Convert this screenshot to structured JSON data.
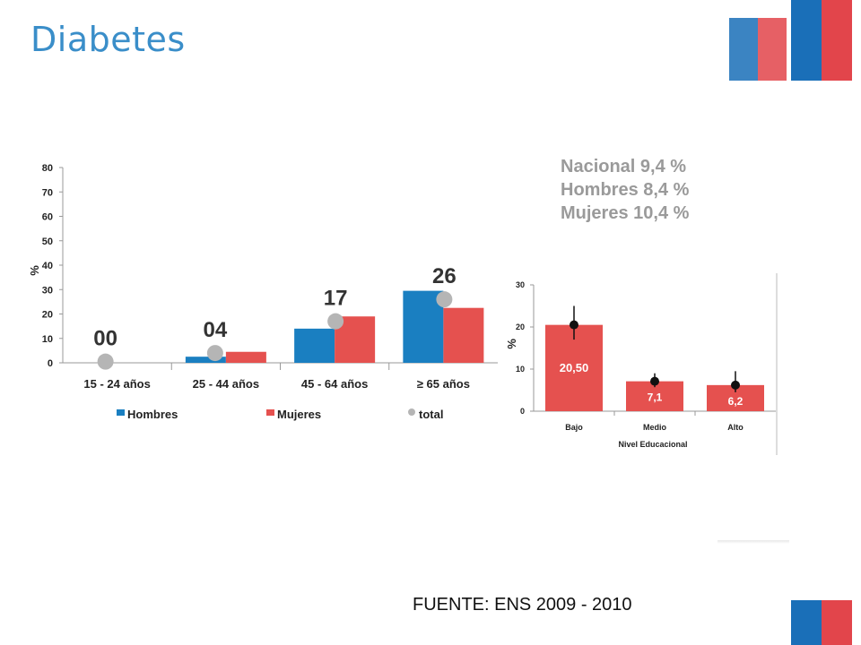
{
  "slide": {
    "title": "Diabetes",
    "source": "FUENTE: ENS 2009 - 2010",
    "stats": [
      "Nacional 9,4  %",
      "Hombres 8,4  %",
      "Mujeres 10,4  %"
    ]
  },
  "colors": {
    "hombres": "#1a7fc1",
    "mujeres": "#e5514f",
    "total": "#b5b5b5",
    "title": "#3a8ec9"
  },
  "chart_data": [
    {
      "type": "bar",
      "categories": [
        "15 - 24 años",
        "25 - 44 años",
        "45 - 64 años",
        "≥ 65 años"
      ],
      "series": [
        {
          "name": "Hombres",
          "values": [
            0,
            2.5,
            14,
            29.5
          ]
        },
        {
          "name": "Mujeres",
          "values": [
            0,
            4.5,
            19,
            22.5
          ]
        },
        {
          "name": "total",
          "values": [
            0.5,
            4,
            17,
            26
          ]
        }
      ],
      "data_labels": [
        "00",
        "04",
        "17",
        "26"
      ],
      "ylabel": "%",
      "ylim": [
        0,
        80
      ],
      "yticks": [
        0,
        10,
        20,
        30,
        40,
        50,
        60,
        70,
        80
      ],
      "legend_position": "bottom"
    },
    {
      "type": "bar",
      "categories": [
        "Bajo",
        "Medio",
        "Alto"
      ],
      "values": [
        20.5,
        7.1,
        6.2
      ],
      "value_labels": [
        "20,50",
        "7,1",
        "6,2"
      ],
      "error_low": [
        17,
        5.7,
        4.5
      ],
      "error_high": [
        25,
        9,
        9.5
      ],
      "xlabel": "Nivel Educacional",
      "ylabel": "%",
      "ylim": [
        0,
        30
      ],
      "yticks": [
        0,
        10,
        20,
        30
      ]
    }
  ]
}
